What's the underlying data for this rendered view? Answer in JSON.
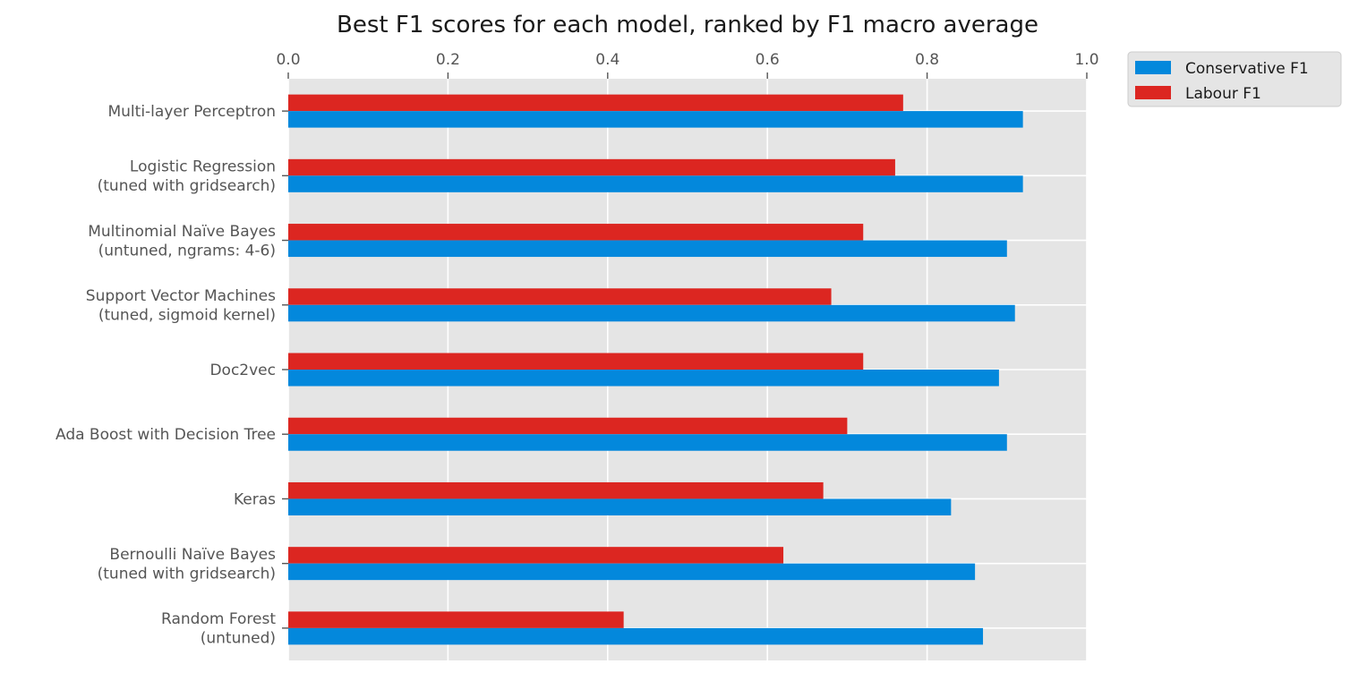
{
  "chart_data": {
    "type": "bar",
    "orientation": "horizontal",
    "title": "Best F1 scores for each model, ranked by F1 macro average",
    "xlabel": "",
    "ylabel": "",
    "xlim": [
      0,
      1.0
    ],
    "x_ticks": [
      "0.0",
      "0.2",
      "0.4",
      "0.6",
      "0.8",
      "1.0"
    ],
    "x_axis_position": "top",
    "grid": true,
    "legend_position": "outside-top-right",
    "categories": [
      [
        "Multi-layer Perceptron"
      ],
      [
        "Logistic Regression",
        "(tuned with gridsearch)"
      ],
      [
        "Multinomial Naïve Bayes",
        "(untuned, ngrams: 4-6)"
      ],
      [
        "Support Vector Machines",
        "(tuned, sigmoid kernel)"
      ],
      [
        "Doc2vec"
      ],
      [
        "Ada Boost with Decision Tree"
      ],
      [
        "Keras"
      ],
      [
        "Bernoulli Naïve Bayes",
        "(tuned with gridsearch)"
      ],
      [
        "Random Forest",
        "(untuned)"
      ]
    ],
    "series": [
      {
        "name": "Conservative F1",
        "color": "#0388dc",
        "values": [
          0.92,
          0.92,
          0.9,
          0.91,
          0.89,
          0.9,
          0.83,
          0.86,
          0.87
        ]
      },
      {
        "name": "Labour F1",
        "color": "#dc2621",
        "values": [
          0.77,
          0.76,
          0.72,
          0.68,
          0.72,
          0.7,
          0.67,
          0.62,
          0.42
        ]
      }
    ],
    "colors": {
      "plot_background": "#e5e5e5",
      "grid": "#ffffff",
      "tick_text": "#555555",
      "legend_background": "#e5e5e5"
    }
  }
}
